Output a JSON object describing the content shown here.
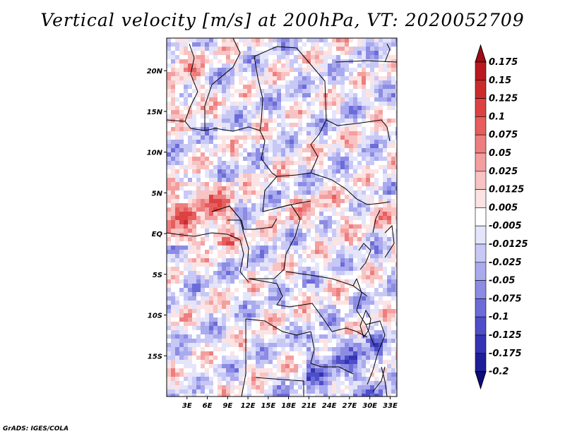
{
  "title": "Vertical velocity [m/s] at 200hPa, VT: 2020052709",
  "credit": "GrADS: IGES/COLA",
  "chart_data": {
    "type": "heatmap",
    "field": "Vertical velocity",
    "units": "m/s",
    "level": "200hPa",
    "valid_time": "2020052709",
    "lon_range": [
      0,
      34
    ],
    "lat_range": [
      -20,
      24
    ],
    "lon_ticks": [
      "3E",
      "6E",
      "9E",
      "12E",
      "15E",
      "18E",
      "21E",
      "24E",
      "27E",
      "30E",
      "33E"
    ],
    "lon_tick_values": [
      3,
      6,
      9,
      12,
      15,
      18,
      21,
      24,
      27,
      30,
      33
    ],
    "lat_ticks": [
      "20N",
      "15N",
      "10N",
      "5N",
      "EQ",
      "5S",
      "10S",
      "15S"
    ],
    "lat_tick_values": [
      20,
      15,
      10,
      5,
      0,
      -5,
      -10,
      -15
    ],
    "colorbar": {
      "labels": [
        "0.175",
        "0.15",
        "0.125",
        "0.1",
        "0.075",
        "0.05",
        "0.025",
        "0.0125",
        "0.005",
        "-0.005",
        "-0.0125",
        "-0.025",
        "-0.05",
        "-0.075",
        "-0.1",
        "-0.125",
        "-0.175",
        "-0.2"
      ],
      "colors": [
        "#9e0d16",
        "#b8191f",
        "#cc2b2b",
        "#dc4242",
        "#e65e5e",
        "#ee7e7e",
        "#f49f9f",
        "#f8c3c3",
        "#fce3e3",
        "#ffffff",
        "#e4e4fa",
        "#c8c8f6",
        "#aaaaee",
        "#8c8ce4",
        "#6c6cd8",
        "#4e4ec8",
        "#3434b4",
        "#1e1e98",
        "#0c0c7a"
      ]
    }
  }
}
